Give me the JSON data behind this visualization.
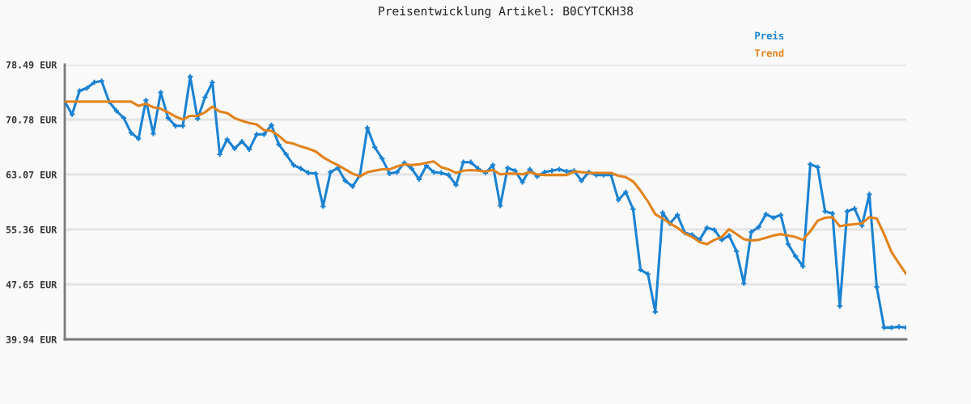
{
  "chart_data": {
    "type": "line",
    "title": "Preisentwicklung Artikel: B0CYTCKH38",
    "categories": [
      null,
      null,
      null,
      null,
      null,
      null,
      null,
      null,
      null,
      null,
      null,
      null,
      null,
      null,
      null,
      null,
      null,
      null,
      null,
      null,
      null,
      null,
      null,
      null,
      null,
      null,
      null,
      null,
      null,
      null,
      null,
      null,
      null,
      null,
      null,
      null,
      null,
      null,
      null,
      null,
      null,
      null,
      null,
      null,
      null,
      null,
      null,
      null,
      null,
      null,
      null,
      null,
      null,
      null,
      null,
      null,
      null,
      null,
      null,
      null,
      null,
      null,
      null,
      null,
      null,
      null,
      null,
      null,
      null,
      null,
      null,
      null,
      null,
      null,
      null,
      null,
      null,
      null,
      null,
      null,
      null,
      null,
      null,
      null,
      null,
      null,
      null,
      null,
      null,
      null,
      null,
      null,
      null,
      null,
      null,
      null,
      null,
      null,
      null,
      null,
      null,
      null,
      null,
      null,
      null,
      null,
      null,
      null,
      null,
      null,
      null,
      null,
      null,
      null,
      null
    ],
    "series": [
      {
        "name": "Preis",
        "color": "#1a82d2",
        "marker": "cross",
        "line_style": "solid",
        "values": [
          73.3,
          71.5,
          74.8,
          75.2,
          76.0,
          76.2,
          73.3,
          72.0,
          71.0,
          68.9,
          68.1,
          73.5,
          68.8,
          74.6,
          71.0,
          69.9,
          69.9,
          76.8,
          70.9,
          73.9,
          76.0,
          65.9,
          68.0,
          66.7,
          67.7,
          66.6,
          68.7,
          68.7,
          70.0,
          67.3,
          65.9,
          64.4,
          63.9,
          63.3,
          63.2,
          58.6,
          63.4,
          64.0,
          62.2,
          61.4,
          63.0,
          69.6,
          66.9,
          65.3,
          63.2,
          63.4,
          64.7,
          63.9,
          62.4,
          64.3,
          63.4,
          63.3,
          63.0,
          61.6,
          64.8,
          64.8,
          63.9,
          63.3,
          64.4,
          58.7,
          64.0,
          63.6,
          62.0,
          63.8,
          62.8,
          63.4,
          63.6,
          63.8,
          63.5,
          63.6,
          62.2,
          63.4,
          63.0,
          63.0,
          63.0,
          59.5,
          60.6,
          58.2,
          49.7,
          49.1,
          43.8,
          57.7,
          56.2,
          57.4,
          54.9,
          54.6,
          53.9,
          55.6,
          55.3,
          53.9,
          54.5,
          52.3,
          47.8,
          55.0,
          55.7,
          57.5,
          57.0,
          57.4,
          53.3,
          51.6,
          50.2,
          64.5,
          64.1,
          57.9,
          57.6,
          44.6,
          57.9,
          58.3,
          55.9,
          60.3,
          47.3,
          41.6,
          41.6,
          41.7,
          41.6
        ]
      },
      {
        "name": "Trend",
        "color": "#e2821a",
        "marker": "none",
        "line_style": "solid",
        "values": [
          73.3,
          73.3,
          73.3,
          73.3,
          73.3,
          73.3,
          73.3,
          73.3,
          73.3,
          73.3,
          72.7,
          73.0,
          72.5,
          72.3,
          71.8,
          71.2,
          70.8,
          71.3,
          71.3,
          71.8,
          72.6,
          71.9,
          71.7,
          71.0,
          70.6,
          70.3,
          70.1,
          69.3,
          69.2,
          68.5,
          67.6,
          67.4,
          67.0,
          66.7,
          66.3,
          65.5,
          64.9,
          64.4,
          63.8,
          63.2,
          62.8,
          63.4,
          63.6,
          63.8,
          63.8,
          64.2,
          64.5,
          64.4,
          64.5,
          64.7,
          64.9,
          64.1,
          63.8,
          63.3,
          63.6,
          63.7,
          63.6,
          63.5,
          63.7,
          63.1,
          63.2,
          63.2,
          63.1,
          63.4,
          63.1,
          63.0,
          63.0,
          63.0,
          63.0,
          63.5,
          63.4,
          63.3,
          63.3,
          63.3,
          63.3,
          62.9,
          62.7,
          62.1,
          60.8,
          59.3,
          57.5,
          56.9,
          56.2,
          55.6,
          54.8,
          54.3,
          53.6,
          53.3,
          53.9,
          54.3,
          55.4,
          54.7,
          54.0,
          53.8,
          53.9,
          54.2,
          54.5,
          54.7,
          54.5,
          54.3,
          53.9,
          55.1,
          56.6,
          57.0,
          57.1,
          55.8,
          56.0,
          56.1,
          56.2,
          57.1,
          56.9,
          54.7,
          52.2,
          50.6,
          49.1
        ]
      }
    ],
    "ylim": [
      39.94,
      78.49
    ],
    "yticks": [
      {
        "value": 39.94,
        "label": "39.94 EUR"
      },
      {
        "value": 47.65,
        "label": "47.65 EUR"
      },
      {
        "value": 55.36,
        "label": "55.36 EUR"
      },
      {
        "value": 63.07,
        "label": "63.07 EUR"
      },
      {
        "value": 70.78,
        "label": "70.78 EUR"
      },
      {
        "value": 78.49,
        "label": "78.49 EUR"
      }
    ],
    "grid": "y",
    "legend": "top right",
    "tick_labels": "y"
  }
}
